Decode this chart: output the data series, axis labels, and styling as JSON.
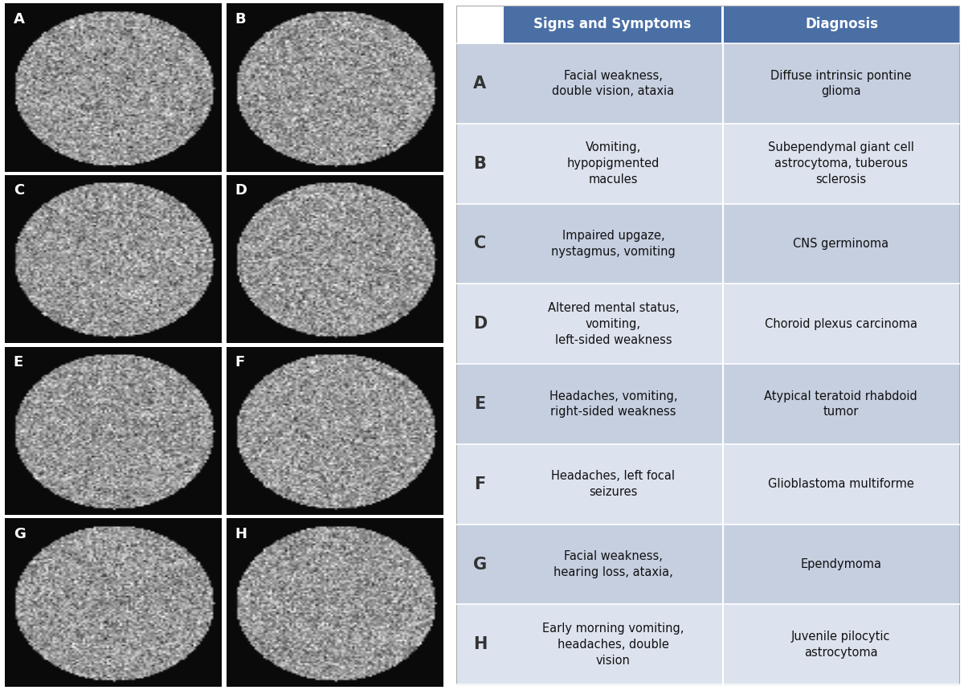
{
  "table_rows": [
    {
      "label": "A",
      "symptoms": "Facial weakness,\ndouble vision, ataxia",
      "diagnosis": "Diffuse intrinsic pontine\nglioma"
    },
    {
      "label": "B",
      "symptoms": "Vomiting,\nhypopigmented\nmacules",
      "diagnosis": "Subependymal giant cell\nastrocytoma, tuberous\nsclerosis"
    },
    {
      "label": "C",
      "symptoms": "Impaired upgaze,\nnystagmus, vomiting",
      "diagnosis": "CNS germinoma"
    },
    {
      "label": "D",
      "symptoms": "Altered mental status,\nvomiting,\nleft-sided weakness",
      "diagnosis": "Choroid plexus carcinoma"
    },
    {
      "label": "E",
      "symptoms": "Headaches, vomiting,\nright-sided weakness",
      "diagnosis": "Atypical teratoid rhabdoid\ntumor"
    },
    {
      "label": "F",
      "symptoms": "Headaches, left focal\nseizures",
      "diagnosis": "Glioblastoma multiforme"
    },
    {
      "label": "G",
      "symptoms": "Facial weakness,\nhearing loss, ataxia,",
      "diagnosis": "Ependymoma"
    },
    {
      "label": "H",
      "symptoms": "Early morning vomiting,\nheadaches, double\nvision",
      "diagnosis": "Juvenile pilocytic\nastrocytoma"
    }
  ],
  "header_bg": "#4a6fa5",
  "row_bg_even": "#c5cfe0",
  "row_bg_odd": "#dde3ee",
  "header_text_color": "#ffffff",
  "row_text_color": "#111111",
  "label_text_color": "#333333",
  "header_labels": [
    "Signs and Symptoms",
    "Diagnosis"
  ],
  "outer_bg": "#ffffff",
  "image_panel_bg": "#000000",
  "panel_labels": [
    "A",
    "B",
    "C",
    "D",
    "E",
    "F",
    "G",
    "H"
  ],
  "label_fontsize": 13,
  "header_fontsize": 12,
  "cell_fontsize": 10.5,
  "row_label_fontsize": 15
}
